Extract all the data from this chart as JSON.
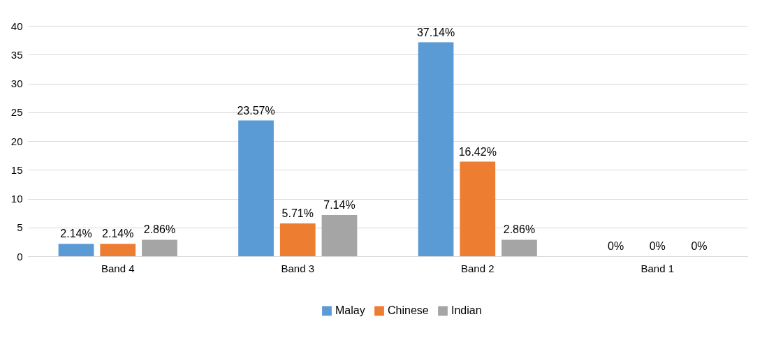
{
  "chart_data": {
    "type": "bar",
    "categories": [
      "Band 4",
      "Band 3",
      "Band 2",
      "Band 1"
    ],
    "series": [
      {
        "name": "Malay",
        "color": "#5b9bd5",
        "values": [
          2.14,
          23.57,
          37.14,
          0
        ],
        "value_labels": [
          "2.14%",
          "23.57%",
          "37.14%",
          "0%"
        ]
      },
      {
        "name": "Chinese",
        "color": "#ed7d31",
        "values": [
          2.14,
          5.71,
          16.42,
          0
        ],
        "value_labels": [
          "2.14%",
          "5.71%",
          "16.42%",
          "0%"
        ]
      },
      {
        "name": "Indian",
        "color": "#a5a5a5",
        "values": [
          2.86,
          7.14,
          2.86,
          0
        ],
        "value_labels": [
          "2.86%",
          "7.14%",
          "2.86%",
          "0%"
        ]
      }
    ],
    "ylim": [
      0,
      40
    ],
    "yticks": [
      0,
      5,
      10,
      15,
      20,
      25,
      30,
      35,
      40
    ],
    "grid": "y",
    "legend": "bottom"
  }
}
